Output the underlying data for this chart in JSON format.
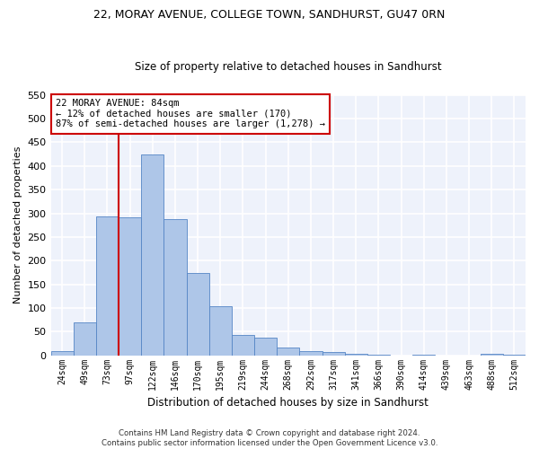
{
  "title1": "22, MORAY AVENUE, COLLEGE TOWN, SANDHURST, GU47 0RN",
  "title2": "Size of property relative to detached houses in Sandhurst",
  "xlabel": "Distribution of detached houses by size in Sandhurst",
  "ylabel": "Number of detached properties",
  "categories": [
    "24sqm",
    "49sqm",
    "73sqm",
    "97sqm",
    "122sqm",
    "146sqm",
    "170sqm",
    "195sqm",
    "219sqm",
    "244sqm",
    "268sqm",
    "292sqm",
    "317sqm",
    "341sqm",
    "366sqm",
    "390sqm",
    "414sqm",
    "439sqm",
    "463sqm",
    "488sqm",
    "512sqm"
  ],
  "values": [
    8,
    70,
    293,
    291,
    424,
    287,
    174,
    104,
    43,
    38,
    17,
    9,
    6,
    3,
    1,
    0,
    1,
    0,
    0,
    3,
    2
  ],
  "bar_color": "#aec6e8",
  "bar_edge_color": "#5585c5",
  "bg_color": "#eef2fb",
  "grid_color": "#ffffff",
  "vline_color": "#cc0000",
  "vline_x": 2.5,
  "annotation_text": "22 MORAY AVENUE: 84sqm\n← 12% of detached houses are smaller (170)\n87% of semi-detached houses are larger (1,278) →",
  "annotation_box_color": "#cc0000",
  "footnote": "Contains HM Land Registry data © Crown copyright and database right 2024.\nContains public sector information licensed under the Open Government Licence v3.0.",
  "ylim": [
    0,
    550
  ],
  "yticks": [
    0,
    50,
    100,
    150,
    200,
    250,
    300,
    350,
    400,
    450,
    500,
    550
  ]
}
